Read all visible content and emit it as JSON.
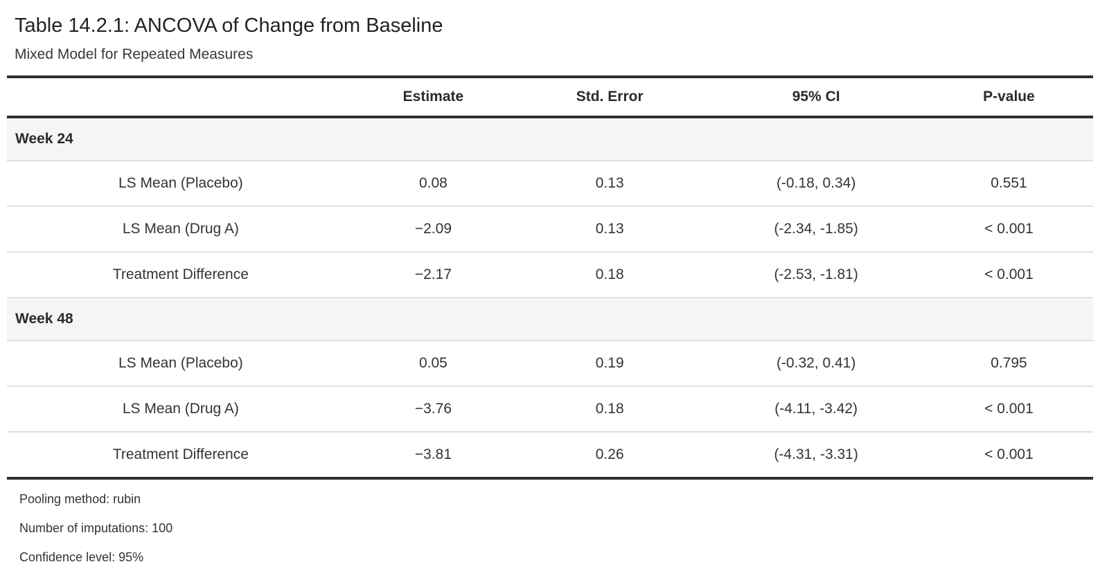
{
  "page": {
    "title": "Table 14.2.1: ANCOVA of Change from Baseline",
    "subtitle": "Mixed Model for Repeated Measures"
  },
  "table": {
    "columns": {
      "stub": "",
      "estimate": "Estimate",
      "std_error": "Std. Error",
      "ci": "95% CI",
      "p_value": "P-value"
    },
    "groups": [
      {
        "label": "Week 24",
        "rows": [
          {
            "label": "LS Mean (Placebo)",
            "estimate": "0.08",
            "std_error": "0.13",
            "ci": "(-0.18, 0.34)",
            "p_value": "0.551"
          },
          {
            "label": "LS Mean (Drug A)",
            "estimate": "−2.09",
            "std_error": "0.13",
            "ci": "(-2.34, -1.85)",
            "p_value": "< 0.001"
          },
          {
            "label": "Treatment Difference",
            "estimate": "−2.17",
            "std_error": "0.18",
            "ci": "(-2.53, -1.81)",
            "p_value": "< 0.001"
          }
        ]
      },
      {
        "label": "Week 48",
        "rows": [
          {
            "label": "LS Mean (Placebo)",
            "estimate": "0.05",
            "std_error": "0.19",
            "ci": "(-0.32, 0.41)",
            "p_value": "0.795"
          },
          {
            "label": "LS Mean (Drug A)",
            "estimate": "−3.76",
            "std_error": "0.18",
            "ci": "(-4.11, -3.42)",
            "p_value": "< 0.001"
          },
          {
            "label": "Treatment Difference",
            "estimate": "−3.81",
            "std_error": "0.26",
            "ci": "(-4.31, -3.31)",
            "p_value": "< 0.001"
          }
        ]
      }
    ],
    "footnotes": [
      "Pooling method: rubin",
      "Number of imputations: 100",
      "Confidence level: 95%"
    ]
  },
  "colors": {
    "heavy_border": "#2f2f2f",
    "light_border": "#e0e0e0",
    "group_row_background": "#f5f5f5",
    "text": "#333333"
  },
  "chart_data": {
    "type": "table",
    "title": "Table 14.2.1: ANCOVA of Change from Baseline",
    "subtitle": "Mixed Model for Repeated Measures",
    "columns": [
      "",
      "Estimate",
      "Std. Error",
      "95% CI",
      "P-value"
    ],
    "rows": [
      [
        "Week 24",
        "",
        "",
        "",
        ""
      ],
      [
        "LS Mean (Placebo)",
        "0.08",
        "0.13",
        "(-0.18, 0.34)",
        "0.551"
      ],
      [
        "LS Mean (Drug A)",
        "−2.09",
        "0.13",
        "(-2.34, -1.85)",
        "< 0.001"
      ],
      [
        "Treatment Difference",
        "−2.17",
        "0.18",
        "(-2.53, -1.81)",
        "< 0.001"
      ],
      [
        "Week 48",
        "",
        "",
        "",
        ""
      ],
      [
        "LS Mean (Placebo)",
        "0.05",
        "0.19",
        "(-0.32, 0.41)",
        "0.795"
      ],
      [
        "LS Mean (Drug A)",
        "−3.76",
        "0.18",
        "(-4.11, -3.42)",
        "< 0.001"
      ],
      [
        "Treatment Difference",
        "−3.81",
        "0.26",
        "(-4.31, -3.31)",
        "< 0.001"
      ]
    ],
    "footnotes": [
      "Pooling method: rubin",
      "Number of imputations: 100",
      "Confidence level: 95%"
    ]
  }
}
